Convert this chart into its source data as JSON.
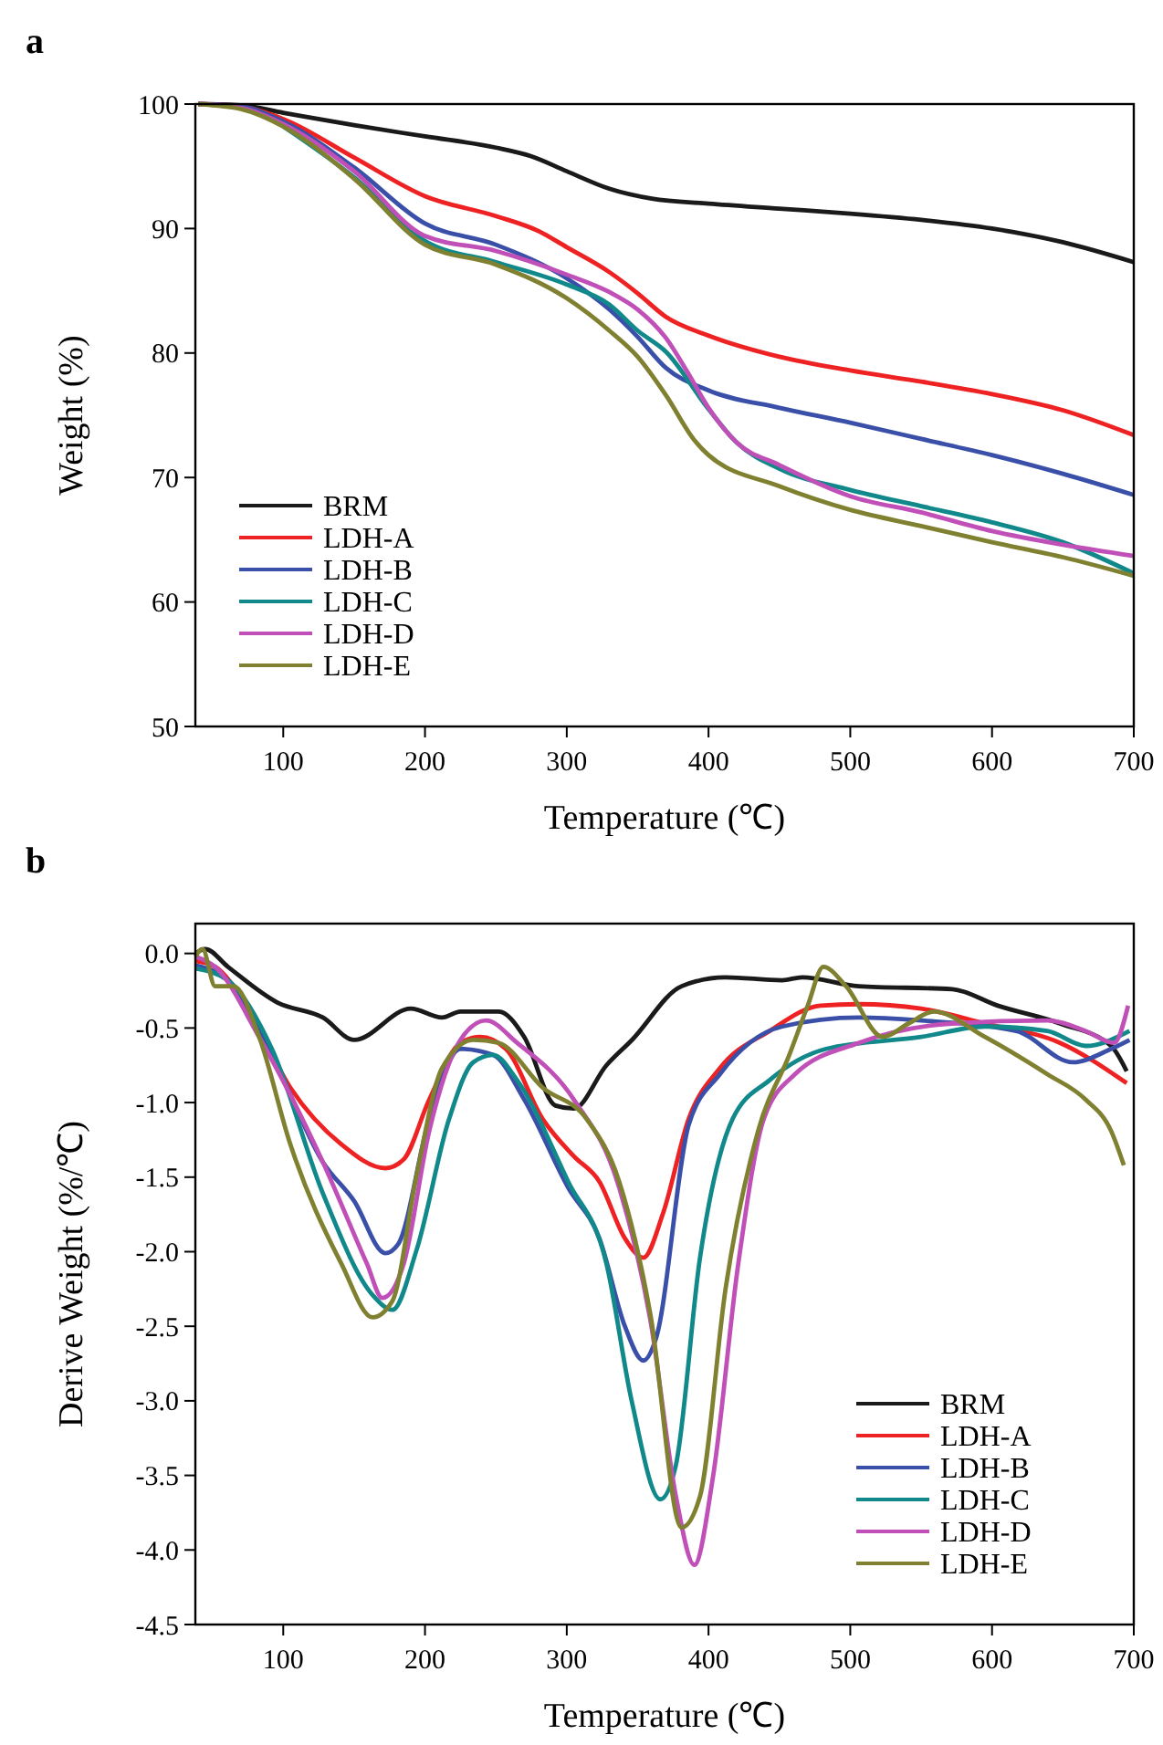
{
  "chart_data": [
    {
      "type": "line",
      "title": "a",
      "xlabel": "Temperature (℃)",
      "ylabel": "Weight (%)",
      "xlim": [
        38,
        700
      ],
      "xticks": [
        100,
        200,
        300,
        400,
        500,
        600,
        700
      ],
      "ylim": [
        50,
        100
      ],
      "yticks": [
        50,
        60,
        70,
        80,
        90,
        100
      ],
      "legend": "bottom left",
      "grid": false,
      "series": [
        {
          "name": "BRM",
          "color": "#1a1a1a",
          "x": [
            40,
            70,
            100,
            150,
            200,
            250,
            275,
            300,
            330,
            360,
            400,
            450,
            500,
            550,
            600,
            650,
            700
          ],
          "values": [
            100,
            99.9,
            99.3,
            98.3,
            97.4,
            96.5,
            95.8,
            94.6,
            93.2,
            92.4,
            92.0,
            91.6,
            91.2,
            90.7,
            90.0,
            88.9,
            87.3
          ]
        },
        {
          "name": "LDH-A",
          "color": "#ee2222",
          "x": [
            40,
            70,
            100,
            150,
            200,
            250,
            280,
            300,
            330,
            350,
            370,
            400,
            450,
            500,
            550,
            600,
            650,
            700
          ],
          "values": [
            100,
            99.8,
            98.8,
            95.7,
            92.6,
            91.0,
            89.8,
            88.5,
            86.5,
            84.8,
            82.9,
            81.4,
            79.7,
            78.6,
            77.7,
            76.7,
            75.4,
            73.4
          ]
        },
        {
          "name": "LDH-B",
          "color": "#3a4fa8",
          "x": [
            40,
            70,
            100,
            150,
            200,
            250,
            300,
            330,
            350,
            370,
            400,
            450,
            500,
            550,
            600,
            650,
            700
          ],
          "values": [
            100,
            99.8,
            98.6,
            94.9,
            90.4,
            88.7,
            86.0,
            83.5,
            81.3,
            78.8,
            77.0,
            75.6,
            74.4,
            73.1,
            71.8,
            70.3,
            68.6
          ]
        },
        {
          "name": "LDH-C",
          "color": "#11888a",
          "x": [
            100,
            150,
            200,
            250,
            300,
            330,
            350,
            370,
            400,
            420,
            450,
            500,
            550,
            600,
            650,
            700
          ],
          "values": [
            98.2,
            94.1,
            89.0,
            87.3,
            85.5,
            83.9,
            81.8,
            80.1,
            75.5,
            72.8,
            70.7,
            69.0,
            67.7,
            66.4,
            64.8,
            62.3
          ]
        },
        {
          "name": "LDH-D",
          "color": "#c050b8",
          "x": [
            40,
            70,
            100,
            150,
            200,
            250,
            300,
            330,
            350,
            370,
            385,
            400,
            420,
            450,
            500,
            550,
            600,
            650,
            700
          ],
          "values": [
            100,
            99.7,
            98.4,
            94.6,
            89.4,
            88.2,
            86.3,
            84.9,
            83.5,
            81.2,
            78.5,
            75.6,
            72.8,
            71.0,
            68.5,
            67.2,
            65.7,
            64.6,
            63.7
          ]
        },
        {
          "name": "LDH-E",
          "color": "#7f8030",
          "x": [
            40,
            70,
            100,
            150,
            200,
            250,
            300,
            330,
            350,
            370,
            390,
            400,
            450,
            500,
            550,
            600,
            650,
            700
          ],
          "values": [
            100,
            99.6,
            98.2,
            94.0,
            88.7,
            87.1,
            84.4,
            81.8,
            79.7,
            76.6,
            73.0,
            71.8,
            69.3,
            67.4,
            66.1,
            64.8,
            63.6,
            62.1
          ]
        }
      ]
    },
    {
      "type": "line",
      "title": "b",
      "xlabel": "Temperature (℃)",
      "ylabel": "Derive Weight (%/℃)",
      "xlim": [
        38,
        700
      ],
      "xticks": [
        100,
        200,
        300,
        400,
        500,
        600,
        700
      ],
      "ylim": [
        -4.5,
        0.2
      ],
      "yticks": [
        {
          "value": 0,
          "label": "0.0"
        },
        {
          "value": -0.5,
          "label": "-0.5"
        },
        {
          "value": -1,
          "label": "-1.0"
        },
        {
          "value": -1.5,
          "label": "-1.5"
        },
        {
          "value": -2,
          "label": "-2.0"
        },
        {
          "value": -2.5,
          "label": "-2.5"
        },
        {
          "value": -3,
          "label": "-3.0"
        },
        {
          "value": -3.5,
          "label": "-3.5"
        },
        {
          "value": -4,
          "label": "-4.0"
        },
        {
          "value": -4.5,
          "label": "-4.5"
        }
      ],
      "legend": "bottom right",
      "grid": false,
      "series": [
        {
          "name": "BRM",
          "color": "#1a1a1a",
          "x": [
            38,
            45,
            61,
            96,
            128,
            150,
            190,
            212,
            225,
            252,
            270,
            292,
            305,
            328,
            346,
            381,
            412,
            452,
            466,
            506,
            572,
            604,
            648,
            684,
            695
          ],
          "values": [
            0,
            0.03,
            -0.09,
            -0.33,
            -0.43,
            -0.58,
            -0.37,
            -0.43,
            -0.39,
            -0.39,
            -0.56,
            -1.02,
            -1.04,
            -0.75,
            -0.58,
            -0.22,
            -0.16,
            -0.18,
            -0.16,
            -0.22,
            -0.24,
            -0.35,
            -0.47,
            -0.62,
            -0.79
          ]
        },
        {
          "name": "LDH-A",
          "color": "#ee2222",
          "x": [
            38,
            52,
            74,
            105,
            141,
            172,
            185,
            203,
            225,
            239,
            257,
            283,
            305,
            323,
            341,
            354,
            368,
            386,
            408,
            443,
            479,
            506,
            550,
            595,
            648,
            695
          ],
          "values": [
            -0.05,
            -0.09,
            -0.35,
            -0.9,
            -1.28,
            -1.44,
            -1.38,
            -0.98,
            -0.6,
            -0.56,
            -0.64,
            -1.11,
            -1.36,
            -1.53,
            -1.91,
            -2.04,
            -1.74,
            -1.11,
            -0.77,
            -0.52,
            -0.35,
            -0.34,
            -0.37,
            -0.47,
            -0.6,
            -0.87
          ]
        },
        {
          "name": "LDH-B",
          "color": "#3a4fa8",
          "x": [
            38,
            61,
            92,
            128,
            150,
            172,
            181,
            203,
            225,
            248,
            270,
            301,
            323,
            341,
            354,
            363,
            386,
            408,
            452,
            506,
            550,
            617,
            657,
            684,
            697
          ],
          "values": [
            -0.08,
            -0.18,
            -0.68,
            -1.4,
            -1.66,
            -2.01,
            -1.95,
            -1.11,
            -0.64,
            -0.68,
            -0.98,
            -1.57,
            -1.91,
            -2.5,
            -2.73,
            -2.58,
            -1.15,
            -0.81,
            -0.49,
            -0.43,
            -0.45,
            -0.52,
            -0.73,
            -0.64,
            -0.58
          ]
        },
        {
          "name": "LDH-C",
          "color": "#11888a",
          "x": [
            38,
            61,
            92,
            128,
            163,
            177,
            194,
            217,
            234,
            248,
            265,
            301,
            328,
            346,
            366,
            377,
            394,
            417,
            443,
            483,
            550,
            595,
            639,
            666,
            697
          ],
          "values": [
            -0.1,
            -0.18,
            -0.64,
            -1.61,
            -2.29,
            -2.39,
            -1.99,
            -1.11,
            -0.73,
            -0.68,
            -0.85,
            -1.53,
            -2.08,
            -3.01,
            -3.66,
            -3.43,
            -2.04,
            -1.11,
            -0.85,
            -0.64,
            -0.56,
            -0.49,
            -0.52,
            -0.62,
            -0.52
          ]
        },
        {
          "name": "LDH-D",
          "color": "#c050b8",
          "x": [
            38,
            52,
            83,
            128,
            159,
            170,
            185,
            203,
            225,
            243,
            265,
            305,
            337,
            359,
            377,
            390,
            403,
            421,
            439,
            461,
            506,
            572,
            639,
            666,
            686,
            696
          ],
          "values": [
            -0.02,
            -0.09,
            -0.56,
            -1.4,
            -2.08,
            -2.31,
            -2.08,
            -1.19,
            -0.58,
            -0.45,
            -0.6,
            -0.98,
            -1.57,
            -2.46,
            -3.64,
            -4.1,
            -3.52,
            -2.08,
            -1.11,
            -0.81,
            -0.6,
            -0.47,
            -0.45,
            -0.52,
            -0.6,
            -0.35
          ]
        },
        {
          "name": "LDH-E",
          "color": "#7f8030",
          "x": [
            38,
            43,
            52,
            65,
            83,
            105,
            141,
            163,
            177,
            194,
            212,
            234,
            252,
            283,
            314,
            337,
            359,
            381,
            394,
            412,
            435,
            457,
            470,
            481,
            497,
            523,
            541,
            559,
            595,
            639,
            666,
            684,
            693
          ],
          "values": [
            -0.02,
            0.03,
            -0.22,
            -0.22,
            -0.56,
            -1.28,
            -2.08,
            -2.44,
            -2.33,
            -1.49,
            -0.77,
            -0.58,
            -0.6,
            -0.9,
            -1.11,
            -1.53,
            -2.42,
            -3.85,
            -3.64,
            -2.25,
            -1.19,
            -0.68,
            -0.35,
            -0.09,
            -0.22,
            -0.56,
            -0.47,
            -0.39,
            -0.56,
            -0.81,
            -0.98,
            -1.19,
            -1.42
          ]
        }
      ]
    }
  ]
}
